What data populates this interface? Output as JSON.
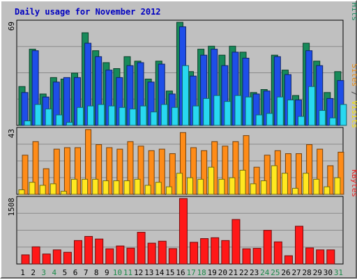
{
  "chart_data": {
    "type": "bar",
    "title": "Daily usage for November 2012",
    "days": [
      "1",
      "2",
      "3",
      "4",
      "5",
      "6",
      "7",
      "8",
      "9",
      "10",
      "11",
      "12",
      "13",
      "14",
      "15",
      "16",
      "17",
      "18",
      "19",
      "20",
      "21",
      "22",
      "23",
      "24",
      "25",
      "26",
      "27",
      "28",
      "29",
      "30",
      "31"
    ],
    "weekend_days": [
      "3",
      "4",
      "10",
      "11",
      "17",
      "18",
      "24",
      "25",
      "31"
    ],
    "panels": [
      {
        "name": "requests",
        "ymax_label": "69",
        "ymax": 69,
        "right_labels": [
          {
            "text": "Pages",
            "color": "#00d8f0"
          },
          {
            "text": " / ",
            "color": "#404040"
          },
          {
            "text": "Files",
            "color": "#1f50e0"
          },
          {
            "text": " / ",
            "color": "#404040"
          },
          {
            "text": "Hits",
            "color": "#1a8a60"
          }
        ],
        "series": [
          {
            "name": "Hits",
            "color": "#178a5a",
            "values": [
              26,
              51,
              21,
              32,
              31,
              35,
              62,
              50,
              42,
              38,
              46,
              43,
              31,
              43,
              23,
              69,
              36,
              51,
              53,
              47,
              53,
              49,
              22,
              24,
              47,
              37,
              20,
              55,
              43,
              22,
              36
            ]
          },
          {
            "name": "Files",
            "color": "#1e4ee8",
            "values": [
              22,
              50,
              19,
              29,
              32,
              32,
              55,
              46,
              37,
              32,
              40,
              42,
              29,
              41,
              21,
              66,
              33,
              47,
              51,
              40,
              49,
              45,
              21,
              23,
              46,
              34,
              17,
              50,
              40,
              18,
              30
            ]
          },
          {
            "name": "Pages",
            "color": "#28d8f0",
            "values": [
              3,
              14,
              11,
              7,
              2,
              12,
              13,
              14,
              13,
              12,
              11,
              13,
              9,
              14,
              12,
              40,
              13,
              18,
              20,
              16,
              20,
              19,
              7,
              8,
              19,
              17,
              6,
              26,
              10,
              5,
              14
            ]
          }
        ]
      },
      {
        "name": "visits",
        "ymax_label": "43",
        "ymax": 43,
        "right_labels": [
          {
            "text": "Sites",
            "color": "#e88a10"
          },
          {
            "text": " / ",
            "color": "#404040"
          },
          {
            "text": "Visits",
            "color": "#f5e000"
          }
        ],
        "series": [
          {
            "name": "Visits",
            "color": "#ff8c18",
            "values": [
              26,
              35,
              17,
              30,
              31,
              31,
              43,
              33,
              31,
              30,
              35,
              32,
              29,
              30,
              27,
              41,
              31,
              29,
              35,
              32,
              35,
              39,
              18,
              26,
              29,
              27,
              27,
              33,
              30,
              19,
              28
            ]
          },
          {
            "name": "Sites",
            "color": "#ffe820",
            "values": [
              3,
              8,
              6,
              7,
              2,
              10,
              10,
              10,
              9,
              9,
              9,
              10,
              6,
              8,
              5,
              14,
              11,
              10,
              18,
              10,
              11,
              16,
              7,
              9,
              19,
              14,
              4,
              14,
              10,
              5,
              11
            ]
          }
        ]
      },
      {
        "name": "kbytes",
        "ymax_label": "1508",
        "ymax": 1508,
        "right_labels": [
          {
            "text": "KBytes",
            "color": "#e82020"
          }
        ],
        "series": [
          {
            "name": "KBytes",
            "color": "#ff1818",
            "values": [
              210,
              395,
              230,
              325,
              270,
              540,
              635,
              575,
              350,
              415,
              365,
              730,
              480,
              525,
              355,
              1508,
              500,
              585,
              605,
              540,
              1025,
              350,
              360,
              775,
              510,
              190,
              870,
              370,
              325,
              325,
              0
            ]
          }
        ]
      }
    ]
  }
}
